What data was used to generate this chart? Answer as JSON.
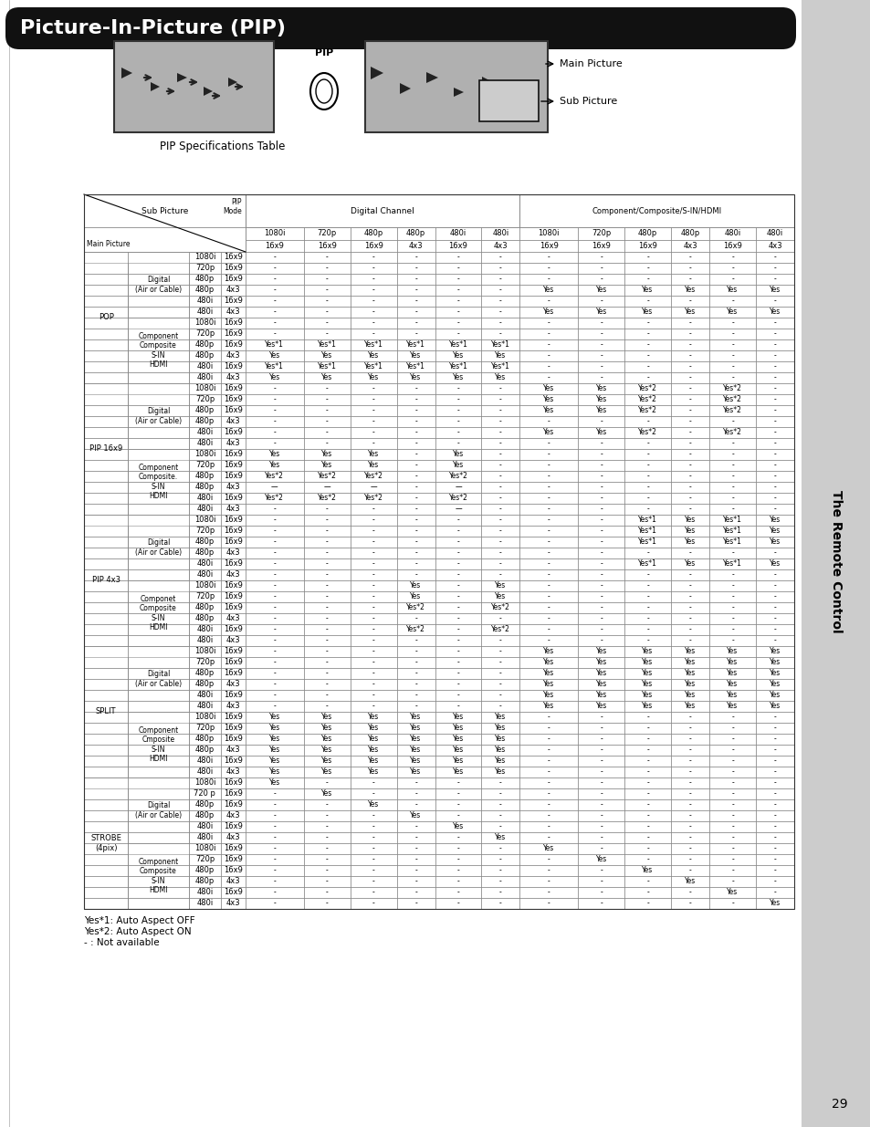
{
  "title": "Picture-In-Picture (PIP)",
  "subtitle": "PIP Specifications Table",
  "sub_headers_row1": [
    "1080i",
    "720p",
    "480p",
    "480p",
    "480i",
    "480i",
    "1080i",
    "720p",
    "480p",
    "480p",
    "480i",
    "480i"
  ],
  "sub_headers_row2": [
    "16x9",
    "16x9",
    "16x9",
    "4x3",
    "16x9",
    "4x3",
    "16x9",
    "16x9",
    "16x9",
    "4x3",
    "16x9",
    "4x3"
  ],
  "rows": [
    [
      "POP",
      "Digital\n(Air or Cable)",
      "1080i",
      "16x9",
      "-",
      "-",
      "-",
      "-",
      "-",
      "-",
      "-",
      "-",
      "-",
      "-",
      "-",
      "-"
    ],
    [
      "",
      "",
      "720p",
      "16x9",
      "-",
      "-",
      "-",
      "-",
      "-",
      "-",
      "-",
      "-",
      "-",
      "-",
      "-",
      "-"
    ],
    [
      "",
      "",
      "480p",
      "16x9",
      "-",
      "-",
      "-",
      "-",
      "-",
      "-",
      "-",
      "-",
      "-",
      "-",
      "-",
      "-"
    ],
    [
      "",
      "",
      "480p",
      "4x3",
      "-",
      "-",
      "-",
      "-",
      "-",
      "-",
      "Yes",
      "Yes",
      "Yes",
      "Yes",
      "Yes",
      "Yes"
    ],
    [
      "",
      "",
      "480i",
      "16x9",
      "-",
      "-",
      "-",
      "-",
      "-",
      "-",
      "-",
      "-",
      "-",
      "-",
      "-",
      "-"
    ],
    [
      "",
      "",
      "480i",
      "4x3",
      "-",
      "-",
      "-",
      "-",
      "-",
      "-",
      "Yes",
      "Yes",
      "Yes",
      "Yes",
      "Yes",
      "Yes"
    ],
    [
      "",
      "Component\nComposite\nS-IN\nHDMI",
      "1080i",
      "16x9",
      "-",
      "-",
      "-",
      "-",
      "-",
      "-",
      "-",
      "-",
      "-",
      "-",
      "-",
      "-"
    ],
    [
      "",
      "",
      "720p",
      "16x9",
      "-",
      "-",
      "-",
      "-",
      "-",
      "-",
      "-",
      "-",
      "-",
      "-",
      "-",
      "-"
    ],
    [
      "",
      "",
      "480p",
      "16x9",
      "Yes*1",
      "Yes*1",
      "Yes*1",
      "Yes*1",
      "Yes*1",
      "Yes*1",
      "-",
      "-",
      "-",
      "-",
      "-",
      "-"
    ],
    [
      "",
      "",
      "480p",
      "4x3",
      "Yes",
      "Yes",
      "Yes",
      "Yes",
      "Yes",
      "Yes",
      "-",
      "-",
      "-",
      "-",
      "-",
      "-"
    ],
    [
      "",
      "",
      "480i",
      "16x9",
      "Yes*1",
      "Yes*1",
      "Yes*1",
      "Yes*1",
      "Yes*1",
      "Yes*1",
      "-",
      "-",
      "-",
      "-",
      "-",
      "-"
    ],
    [
      "",
      "",
      "480i",
      "4x3",
      "Yes",
      "Yes",
      "Yes",
      "Yes",
      "Yes",
      "Yes",
      "-",
      "-",
      "-",
      "-",
      "-",
      "-"
    ],
    [
      "PIP 16x9",
      "Digital\n(Air or Cable)",
      "1080i",
      "16x9",
      "-",
      "-",
      "-",
      "-",
      "-",
      "-",
      "Yes",
      "Yes",
      "Yes*2",
      "-",
      "Yes*2",
      "-"
    ],
    [
      "",
      "",
      "720p",
      "16x9",
      "-",
      "-",
      "-",
      "-",
      "-",
      "-",
      "Yes",
      "Yes",
      "Yes*2",
      "-",
      "Yes*2",
      "-"
    ],
    [
      "",
      "",
      "480p",
      "16x9",
      "-",
      "-",
      "-",
      "-",
      "-",
      "-",
      "Yes",
      "Yes",
      "Yes*2",
      "-",
      "Yes*2",
      "-"
    ],
    [
      "",
      "",
      "480p",
      "4x3",
      "-",
      "-",
      "-",
      "-",
      "-",
      "-",
      "-",
      "-",
      "-",
      "-",
      "-",
      "-"
    ],
    [
      "",
      "",
      "480i",
      "16x9",
      "-",
      "-",
      "-",
      "-",
      "-",
      "-",
      "Yes",
      "Yes",
      "Yes*2",
      "-",
      "Yes*2",
      "-"
    ],
    [
      "",
      "",
      "480i",
      "4x3",
      "-",
      "-",
      "-",
      "-",
      "-",
      "-",
      "-",
      "-",
      "-",
      "-",
      "-",
      "-"
    ],
    [
      "",
      "Component\nComposite.\nS-IN\nHDMI",
      "1080i",
      "16x9",
      "Yes",
      "Yes",
      "Yes",
      "-",
      "Yes",
      "-",
      "-",
      "-",
      "-",
      "-",
      "-",
      "-"
    ],
    [
      "",
      "",
      "720p",
      "16x9",
      "Yes",
      "Yes",
      "Yes",
      "-",
      "Yes",
      "-",
      "-",
      "-",
      "-",
      "-",
      "-",
      "-"
    ],
    [
      "",
      "",
      "480p",
      "16x9",
      "Yes*2",
      "Yes*2",
      "Yes*2",
      "-",
      "Yes*2",
      "-",
      "-",
      "-",
      "-",
      "-",
      "-",
      "-"
    ],
    [
      "",
      "",
      "480p",
      "4x3",
      "—",
      "—",
      "—",
      "-",
      "—",
      "-",
      "-",
      "-",
      "-",
      "-",
      "-",
      "-"
    ],
    [
      "",
      "",
      "480i",
      "16x9",
      "Yes*2",
      "Yes*2",
      "Yes*2",
      "-",
      "Yes*2",
      "-",
      "-",
      "-",
      "-",
      "-",
      "-",
      "-"
    ],
    [
      "",
      "",
      "480i",
      "4x3",
      "-",
      "-",
      "-",
      "-",
      "—",
      "-",
      "-",
      "-",
      "-",
      "-",
      "-",
      "-"
    ],
    [
      "PIP 4x3",
      "Digital\n(Air or Cable)",
      "1080i",
      "16x9",
      "-",
      "-",
      "-",
      "-",
      "-",
      "-",
      "-",
      "-",
      "Yes*1",
      "Yes",
      "Yes*1",
      "Yes"
    ],
    [
      "",
      "",
      "720p",
      "16x9",
      "-",
      "-",
      "-",
      "-",
      "-",
      "-",
      "-",
      "-",
      "Yes*1",
      "Yes",
      "Yes*1",
      "Yes"
    ],
    [
      "",
      "",
      "480p",
      "16x9",
      "-",
      "-",
      "-",
      "-",
      "-",
      "-",
      "-",
      "-",
      "Yes*1",
      "Yes",
      "Yes*1",
      "Yes"
    ],
    [
      "",
      "",
      "480p",
      "4x3",
      "-",
      "-",
      "-",
      "-",
      "-",
      "-",
      "-",
      "-",
      "-",
      "-",
      "-",
      "-"
    ],
    [
      "",
      "",
      "480i",
      "16x9",
      "-",
      "-",
      "-",
      "-",
      "-",
      "-",
      "-",
      "-",
      "Yes*1",
      "Yes",
      "Yes*1",
      "Yes"
    ],
    [
      "",
      "",
      "480i",
      "4x3",
      "-",
      "-",
      "-",
      "-",
      "-",
      "-",
      "-",
      "-",
      "-",
      "-",
      "-",
      "-"
    ],
    [
      "",
      "Componet\nComposite\nS-IN\nHDMI",
      "1080i",
      "16x9",
      "-",
      "-",
      "-",
      "Yes",
      "-",
      "Yes",
      "-",
      "-",
      "-",
      "-",
      "-",
      "-"
    ],
    [
      "",
      "",
      "720p",
      "16x9",
      "-",
      "-",
      "-",
      "Yes",
      "-",
      "Yes",
      "-",
      "-",
      "-",
      "-",
      "-",
      "-"
    ],
    [
      "",
      "",
      "480p",
      "16x9",
      "-",
      "-",
      "-",
      "Yes*2",
      "-",
      "Yes*2",
      "-",
      "-",
      "-",
      "-",
      "-",
      "-"
    ],
    [
      "",
      "",
      "480p",
      "4x3",
      "-",
      "-",
      "-",
      "-",
      "-",
      "-",
      "-",
      "-",
      "-",
      "-",
      "-",
      "-"
    ],
    [
      "",
      "",
      "480i",
      "16x9",
      "-",
      "-",
      "-",
      "Yes*2",
      "-",
      "Yes*2",
      "-",
      "-",
      "-",
      "-",
      "-",
      "-"
    ],
    [
      "",
      "",
      "480i",
      "4x3",
      "-",
      "-",
      "-",
      "-",
      "-",
      "-",
      "-",
      "-",
      "-",
      "-",
      "-",
      "-"
    ],
    [
      "SPLIT",
      "Digital\n(Air or Cable)",
      "1080i",
      "16x9",
      "-",
      "-",
      "-",
      "-",
      "-",
      "-",
      "Yes",
      "Yes",
      "Yes",
      "Yes",
      "Yes",
      "Yes"
    ],
    [
      "",
      "",
      "720p",
      "16x9",
      "-",
      "-",
      "-",
      "-",
      "-",
      "-",
      "Yes",
      "Yes",
      "Yes",
      "Yes",
      "Yes",
      "Yes"
    ],
    [
      "",
      "",
      "480p",
      "16x9",
      "-",
      "-",
      "-",
      "-",
      "-",
      "-",
      "Yes",
      "Yes",
      "Yes",
      "Yes",
      "Yes",
      "Yes"
    ],
    [
      "",
      "",
      "480p",
      "4x3",
      "-",
      "-",
      "-",
      "-",
      "-",
      "-",
      "Yes",
      "Yes",
      "Yes",
      "Yes",
      "Yes",
      "Yes"
    ],
    [
      "",
      "",
      "480i",
      "16x9",
      "-",
      "-",
      "-",
      "-",
      "-",
      "-",
      "Yes",
      "Yes",
      "Yes",
      "Yes",
      "Yes",
      "Yes"
    ],
    [
      "",
      "",
      "480i",
      "4x3",
      "-",
      "-",
      "-",
      "-",
      "-",
      "-",
      "Yes",
      "Yes",
      "Yes",
      "Yes",
      "Yes",
      "Yes"
    ],
    [
      "",
      "Component\nCmposite\nS-IN\nHDMI",
      "1080i",
      "16x9",
      "Yes",
      "Yes",
      "Yes",
      "Yes",
      "Yes",
      "Yes",
      "-",
      "-",
      "-",
      "-",
      "-",
      "-"
    ],
    [
      "",
      "",
      "720p",
      "16x9",
      "Yes",
      "Yes",
      "Yes",
      "Yes",
      "Yes",
      "Yes",
      "-",
      "-",
      "-",
      "-",
      "-",
      "-"
    ],
    [
      "",
      "",
      "480p",
      "16x9",
      "Yes",
      "Yes",
      "Yes",
      "Yes",
      "Yes",
      "Yes",
      "-",
      "-",
      "-",
      "-",
      "-",
      "-"
    ],
    [
      "",
      "",
      "480p",
      "4x3",
      "Yes",
      "Yes",
      "Yes",
      "Yes",
      "Yes",
      "Yes",
      "-",
      "-",
      "-",
      "-",
      "-",
      "-"
    ],
    [
      "",
      "",
      "480i",
      "16x9",
      "Yes",
      "Yes",
      "Yes",
      "Yes",
      "Yes",
      "Yes",
      "-",
      "-",
      "-",
      "-",
      "-",
      "-"
    ],
    [
      "",
      "",
      "480i",
      "4x3",
      "Yes",
      "Yes",
      "Yes",
      "Yes",
      "Yes",
      "Yes",
      "-",
      "-",
      "-",
      "-",
      "-",
      "-"
    ],
    [
      "STROBE\n(4pix)",
      "Digital\n(Air or Cable)",
      "1080i",
      "16x9",
      "Yes",
      "-",
      "-",
      "-",
      "-",
      "-",
      "-",
      "-",
      "-",
      "-",
      "-",
      "-"
    ],
    [
      "",
      "",
      "720 p",
      "16x9",
      "-",
      "Yes",
      "-",
      "-",
      "-",
      "-",
      "-",
      "-",
      "-",
      "-",
      "-",
      "-"
    ],
    [
      "",
      "",
      "480p",
      "16x9",
      "-",
      "-",
      "Yes",
      "-",
      "-",
      "-",
      "-",
      "-",
      "-",
      "-",
      "-",
      "-"
    ],
    [
      "",
      "",
      "480p",
      "4x3",
      "-",
      "-",
      "-",
      "Yes",
      "-",
      "-",
      "-",
      "-",
      "-",
      "-",
      "-",
      "-"
    ],
    [
      "",
      "",
      "480i",
      "16x9",
      "-",
      "-",
      "-",
      "-",
      "Yes",
      "-",
      "-",
      "-",
      "-",
      "-",
      "-",
      "-"
    ],
    [
      "",
      "",
      "480i",
      "4x3",
      "-",
      "-",
      "-",
      "-",
      "-",
      "Yes",
      "-",
      "-",
      "-",
      "-",
      "-",
      "-"
    ],
    [
      "",
      "Component\nComposite\nS-IN\nHDMI",
      "1080i",
      "16x9",
      "-",
      "-",
      "-",
      "-",
      "-",
      "-",
      "Yes",
      "-",
      "-",
      "-",
      "-",
      "-"
    ],
    [
      "",
      "",
      "720p",
      "16x9",
      "-",
      "-",
      "-",
      "-",
      "-",
      "-",
      "-",
      "Yes",
      "-",
      "-",
      "-",
      "-"
    ],
    [
      "",
      "",
      "480p",
      "16x9",
      "-",
      "-",
      "-",
      "-",
      "-",
      "-",
      "-",
      "-",
      "Yes",
      "-",
      "-",
      "-"
    ],
    [
      "",
      "",
      "480p",
      "4x3",
      "-",
      "-",
      "-",
      "-",
      "-",
      "-",
      "-",
      "-",
      "-",
      "Yes",
      "-",
      "-"
    ],
    [
      "",
      "",
      "480i",
      "16x9",
      "-",
      "-",
      "-",
      "-",
      "-",
      "-",
      "-",
      "-",
      "-",
      "-",
      "Yes",
      "-"
    ],
    [
      "",
      "",
      "480i",
      "4x3",
      "-",
      "-",
      "-",
      "-",
      "-",
      "-",
      "-",
      "-",
      "-",
      "-",
      "-",
      "Yes"
    ]
  ],
  "footnotes": [
    "Yes*1: Auto Aspect OFF",
    "Yes*2: Auto Aspect ON",
    "- : Not available"
  ],
  "page_number": "29"
}
